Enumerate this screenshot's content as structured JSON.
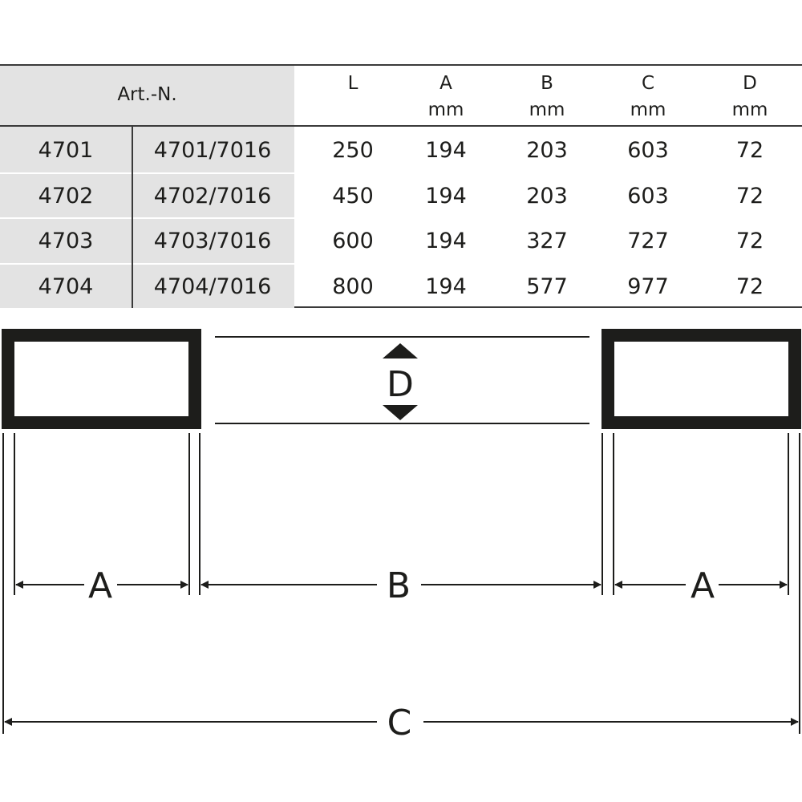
{
  "table": {
    "header": {
      "art_no": "Art.-N.",
      "columns": [
        {
          "label": "L",
          "unit": ""
        },
        {
          "label": "A",
          "unit": "mm"
        },
        {
          "label": "B",
          "unit": "mm"
        },
        {
          "label": "C",
          "unit": "mm"
        },
        {
          "label": "D",
          "unit": "mm"
        }
      ]
    },
    "rows": [
      [
        "4701",
        "4701/7016",
        "250",
        "194",
        "203",
        "603",
        "72"
      ],
      [
        "4702",
        "4702/7016",
        "450",
        "194",
        "203",
        "603",
        "72"
      ],
      [
        "4703",
        "4703/7016",
        "600",
        "194",
        "327",
        "727",
        "72"
      ],
      [
        "4704",
        "4704/7016",
        "800",
        "194",
        "577",
        "977",
        "72"
      ]
    ]
  },
  "diagram": {
    "labels": {
      "a": "A",
      "b": "B",
      "c": "C",
      "d": "D"
    }
  }
}
